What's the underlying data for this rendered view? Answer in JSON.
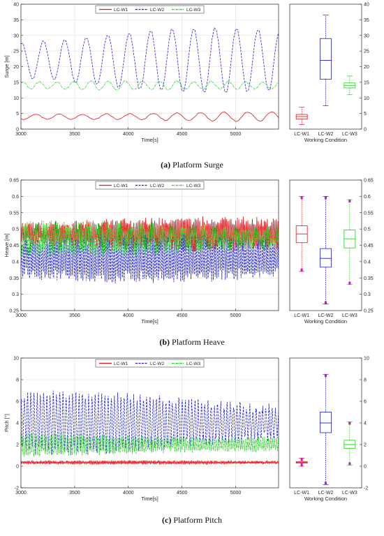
{
  "colors": {
    "LC-W1": "#e8141c",
    "LC-W2": "#1f1fd6",
    "LC-W3": "#22d21e",
    "outlier": "#e600e6",
    "axis": "#262626",
    "grid": "#dcdcdc"
  },
  "shared": {
    "xlabel": "Time[s]",
    "x_ticks": [
      "3000",
      "3500",
      "4000",
      "4500",
      "5000"
    ],
    "xlim": [
      3000,
      5400
    ],
    "box_xlabel": "Working Condition",
    "box_categories": [
      "LC-W1",
      "LC-W2",
      "LC-W3"
    ]
  },
  "chart_data": [
    {
      "type": "line",
      "panel": "surge",
      "caption_label": "(a)",
      "caption_text": " Platform Surge",
      "ylabel": "Surge [m]",
      "ylim": [
        0,
        40
      ],
      "y_ticks": [
        "0",
        "5",
        "10",
        "15",
        "20",
        "25",
        "30",
        "35",
        "40"
      ],
      "legend": [
        "LC-W1",
        "LC-W2",
        "LC-W3"
      ],
      "legend_placement": "top-center",
      "grid": true,
      "series": [
        {
          "name": "LC-W1",
          "style": "solid",
          "mean": 4.0,
          "amp": 1.6,
          "period": 220,
          "noise": 0.15
        },
        {
          "name": "LC-W2",
          "style": "dashed",
          "mean": 22.0,
          "amp": 10.5,
          "period": 200,
          "noise": 0.3
        },
        {
          "name": "LC-W3",
          "style": "dashdot",
          "mean": 14.0,
          "amp": 1.4,
          "period": 160,
          "noise": 0.25
        }
      ],
      "box": [
        {
          "name": "LC-W1",
          "min": 1.5,
          "q1": 3.2,
          "median": 4.0,
          "q3": 4.7,
          "max": 7.0
        },
        {
          "name": "LC-W2",
          "min": 7.5,
          "q1": 16.0,
          "median": 22.0,
          "q3": 29.0,
          "max": 36.5
        },
        {
          "name": "LC-W3",
          "min": 11.0,
          "q1": 13.2,
          "median": 14.0,
          "q3": 14.8,
          "max": 17.0
        }
      ]
    },
    {
      "type": "line",
      "panel": "heave",
      "caption_label": "(b)",
      "caption_text": " Platform Heave",
      "ylabel": "Heave [m]",
      "ylim": [
        0.25,
        0.65
      ],
      "y_ticks": [
        "0.25",
        "0.3",
        "0.35",
        "0.4",
        "0.45",
        "0.5",
        "0.55",
        "0.6",
        "0.65"
      ],
      "legend": [
        "LC-W1",
        "LC-W2",
        "LC-W3"
      ],
      "legend_placement": "top-center",
      "grid": true,
      "series": [
        {
          "name": "LC-W1",
          "style": "solid",
          "mean": 0.485,
          "amp": 0.04,
          "period": 14,
          "noise": 0.015
        },
        {
          "name": "LC-W2",
          "style": "dashed",
          "mean": 0.41,
          "amp": 0.06,
          "period": 16,
          "noise": 0.02
        },
        {
          "name": "LC-W3",
          "style": "dashdot",
          "mean": 0.47,
          "amp": 0.045,
          "period": 15,
          "noise": 0.015
        }
      ],
      "box": [
        {
          "name": "LC-W1",
          "min": 0.37,
          "q1": 0.458,
          "median": 0.485,
          "q3": 0.51,
          "max": 0.6
        },
        {
          "name": "LC-W2",
          "min": 0.27,
          "q1": 0.383,
          "median": 0.41,
          "q3": 0.44,
          "max": 0.6
        },
        {
          "name": "LC-W3",
          "min": 0.33,
          "q1": 0.442,
          "median": 0.47,
          "q3": 0.497,
          "max": 0.59
        }
      ]
    },
    {
      "type": "line",
      "panel": "pitch",
      "caption_label": "(c)",
      "caption_text": " Platform Pitch",
      "ylabel": "Pitch [°]",
      "ylim": [
        -2,
        10
      ],
      "y_ticks": [
        "-2",
        "0",
        "2",
        "4",
        "6",
        "8",
        "10"
      ],
      "legend": [
        "LC-W1",
        "LC-W2",
        "LC-W3"
      ],
      "legend_placement": "top-center",
      "grid": true,
      "series": [
        {
          "name": "LC-W1",
          "style": "solid",
          "mean": 0.35,
          "amp": 0.12,
          "period": 12,
          "noise": 0.08
        },
        {
          "name": "LC-W2",
          "style": "dashed",
          "mean": 4.0,
          "amp": 2.6,
          "period": 30,
          "noise": 0.5
        },
        {
          "name": "LC-W3",
          "style": "dashdot",
          "mean": 2.0,
          "amp": 0.9,
          "period": 18,
          "noise": 0.3
        }
      ],
      "box": [
        {
          "name": "LC-W1",
          "min": 0.0,
          "q1": 0.28,
          "median": 0.35,
          "q3": 0.43,
          "max": 0.75
        },
        {
          "name": "LC-W2",
          "min": -1.7,
          "q1": 3.1,
          "median": 4.0,
          "q3": 5.0,
          "max": 8.5
        },
        {
          "name": "LC-W3",
          "min": 0.1,
          "q1": 1.65,
          "median": 2.0,
          "q3": 2.4,
          "max": 4.1
        }
      ]
    }
  ]
}
